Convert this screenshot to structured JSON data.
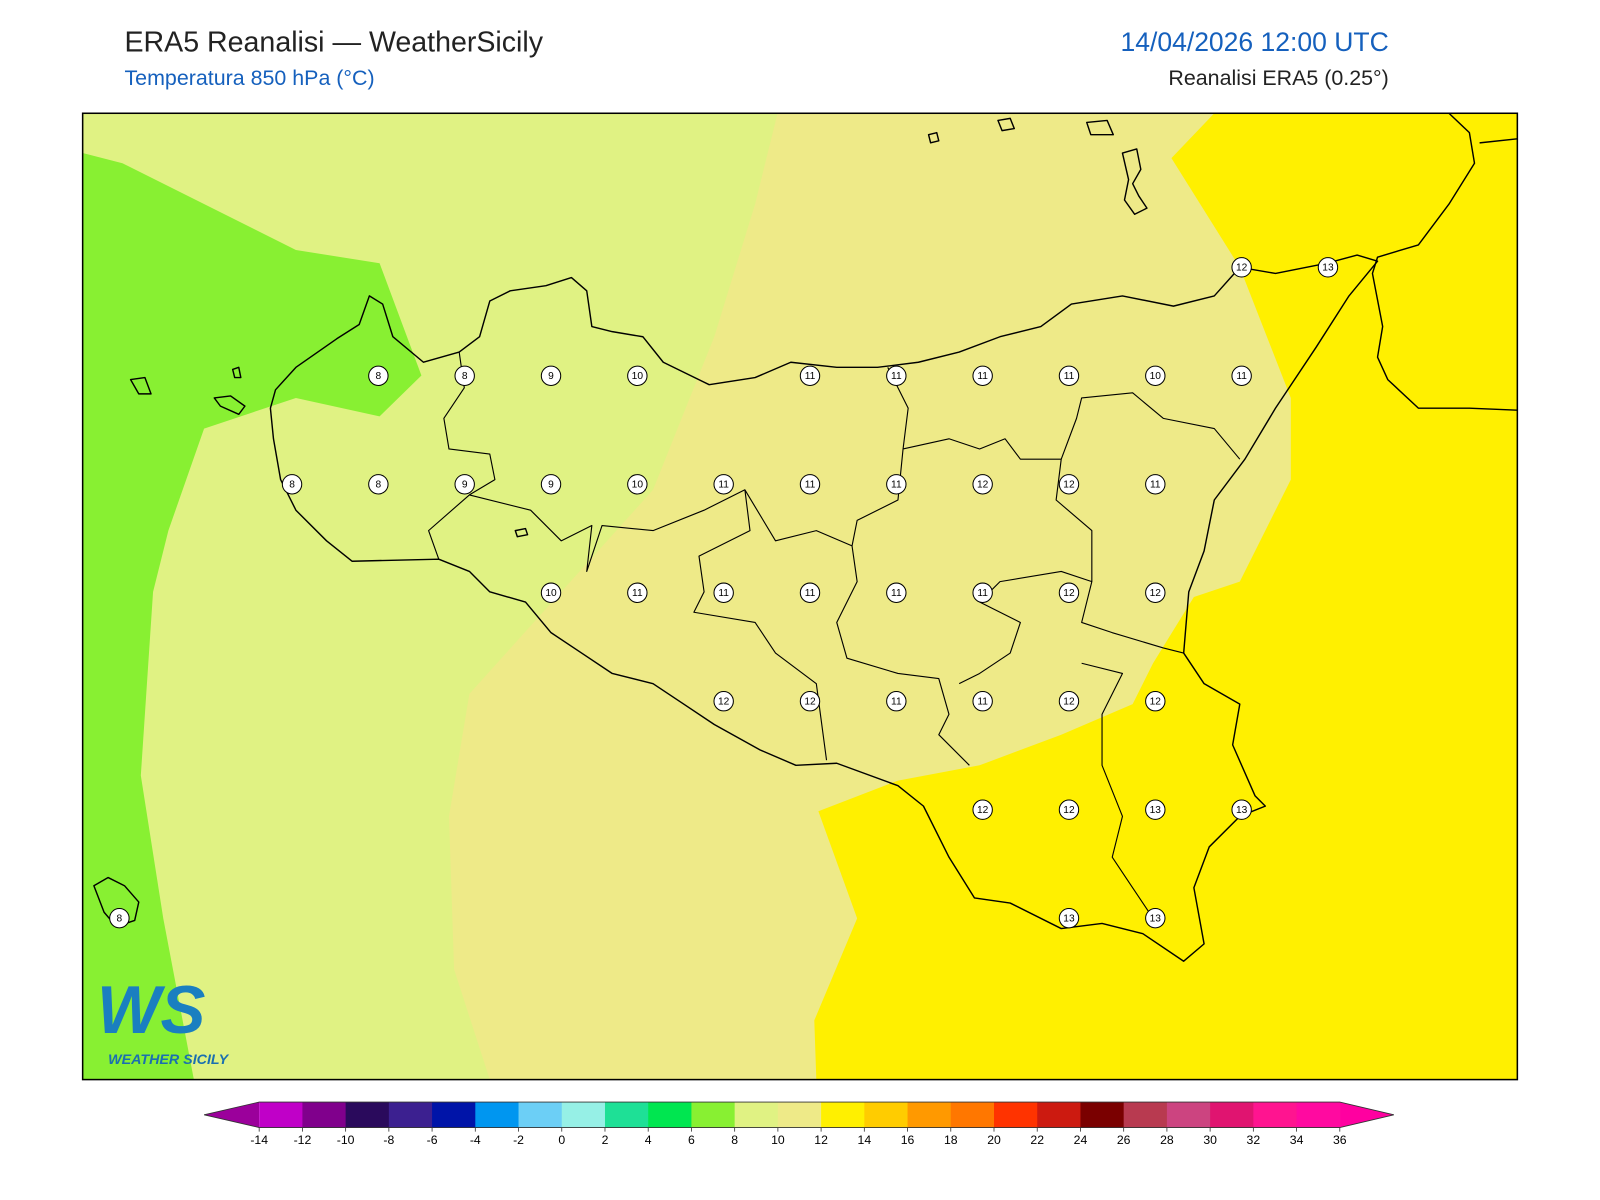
{
  "header": {
    "title": "ERA5 Reanalisi — WeatherSicily",
    "subtitle": "Temperatura 850 hPa (°C)",
    "valid_time": "14/04/2026 12:00 UTC",
    "source": "Reanalisi ERA5 (0.25°)"
  },
  "map": {
    "grid": [
      [
        null,
        null,
        null,
        null,
        null,
        null,
        null,
        null,
        null,
        null,
        null,
        null,
        null,
        12,
        13
      ],
      [
        null,
        null,
        null,
        8,
        8,
        9,
        10,
        null,
        11,
        11,
        11,
        11,
        10,
        11,
        null
      ],
      [
        null,
        null,
        8,
        8,
        9,
        9,
        10,
        11,
        11,
        11,
        12,
        12,
        11,
        null,
        null
      ],
      [
        null,
        null,
        null,
        null,
        null,
        10,
        11,
        11,
        11,
        11,
        11,
        12,
        12,
        null,
        null
      ],
      [
        null,
        null,
        null,
        null,
        null,
        null,
        null,
        12,
        12,
        11,
        11,
        12,
        12,
        null,
        null
      ],
      [
        null,
        null,
        null,
        null,
        null,
        null,
        null,
        null,
        null,
        null,
        12,
        12,
        13,
        13,
        null
      ],
      [
        8,
        null,
        null,
        null,
        null,
        null,
        null,
        null,
        null,
        null,
        null,
        13,
        13,
        null,
        null
      ]
    ]
  },
  "logo": {
    "initials": "WS",
    "name": "WEATHER SICILY"
  },
  "colorbar": {
    "ticks": [
      -14,
      -12,
      -10,
      -8,
      -6,
      -4,
      -2,
      0,
      2,
      4,
      6,
      8,
      10,
      12,
      14,
      16,
      18,
      20,
      22,
      24,
      26,
      28,
      30,
      32,
      34,
      36
    ],
    "colors": [
      "#c000c8",
      "#80008c",
      "#2a0a5c",
      "#3c2090",
      "#0014a8",
      "#0096f0",
      "#6ccff6",
      "#96f0e6",
      "#1ee096",
      "#00e650",
      "#88f032",
      "#e0f283",
      "#eeea88",
      "#fff000",
      "#ffcc00",
      "#ff9900",
      "#ff7700",
      "#ff3300",
      "#cc1a10",
      "#7a0000",
      "#b83a50",
      "#cc4480",
      "#e01470",
      "#ff1490",
      "#ff0aa0"
    ],
    "under_color": "#9b009b",
    "over_color": "#ff00a0"
  }
}
